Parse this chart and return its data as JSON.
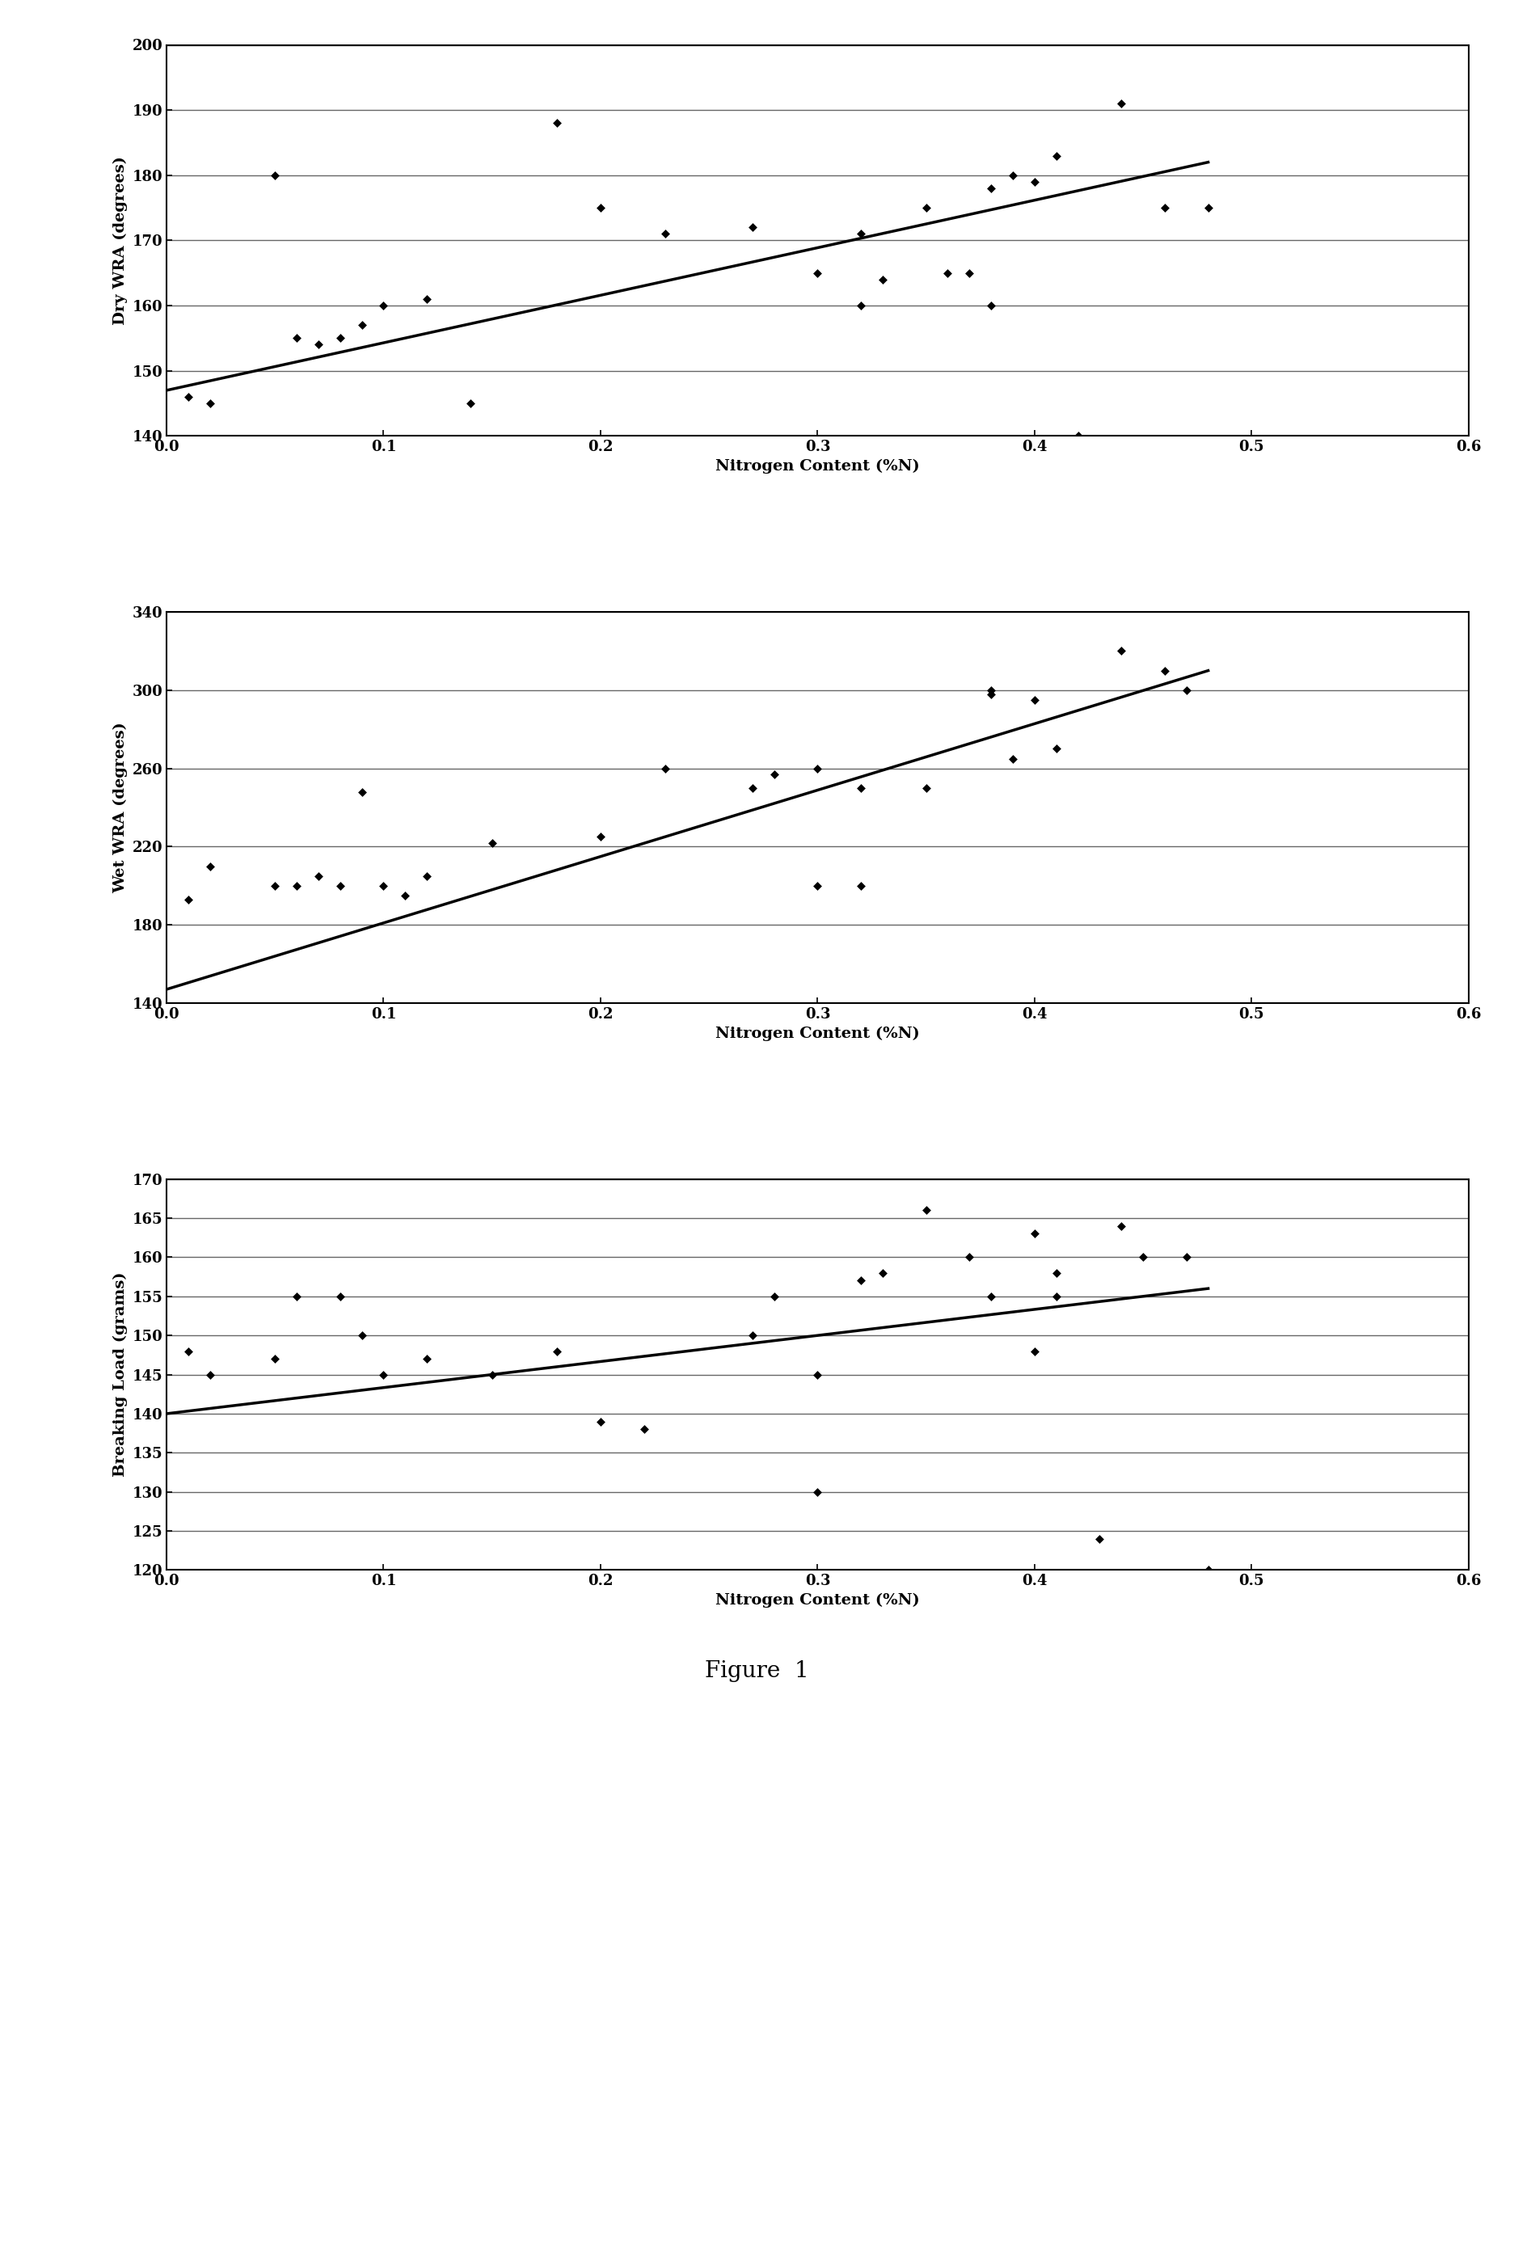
{
  "chart1": {
    "xlabel": "Nitrogen Content (%N)",
    "ylabel": "Dry WRA (degrees)",
    "xlim": [
      0,
      0.6
    ],
    "ylim": [
      140,
      200
    ],
    "yticks": [
      140,
      150,
      160,
      170,
      180,
      190,
      200
    ],
    "xticks": [
      0,
      0.1,
      0.2,
      0.3,
      0.4,
      0.5,
      0.6
    ],
    "scatter_x": [
      0.01,
      0.02,
      0.05,
      0.06,
      0.07,
      0.08,
      0.09,
      0.1,
      0.12,
      0.14,
      0.18,
      0.2,
      0.23,
      0.27,
      0.3,
      0.32,
      0.32,
      0.33,
      0.35,
      0.36,
      0.37,
      0.38,
      0.38,
      0.39,
      0.4,
      0.41,
      0.42,
      0.44,
      0.46,
      0.48
    ],
    "scatter_y": [
      146,
      145,
      180,
      155,
      154,
      155,
      157,
      160,
      161,
      145,
      188,
      175,
      171,
      172,
      165,
      160,
      171,
      164,
      175,
      165,
      165,
      178,
      160,
      180,
      179,
      183,
      140,
      191,
      175,
      175
    ],
    "trendline_x": [
      0,
      0.48
    ],
    "trendline_y": [
      147,
      182
    ]
  },
  "chart2": {
    "xlabel": "Nitrogen Content (%N)",
    "ylabel": "Wet WRA (degrees)",
    "xlim": [
      0,
      0.6
    ],
    "ylim": [
      140,
      340
    ],
    "yticks": [
      140,
      180,
      220,
      260,
      300,
      340
    ],
    "xticks": [
      0,
      0.1,
      0.2,
      0.3,
      0.4,
      0.5,
      0.6
    ],
    "scatter_x": [
      0.01,
      0.02,
      0.05,
      0.06,
      0.07,
      0.08,
      0.09,
      0.1,
      0.11,
      0.12,
      0.15,
      0.2,
      0.23,
      0.27,
      0.28,
      0.3,
      0.3,
      0.32,
      0.32,
      0.35,
      0.38,
      0.38,
      0.39,
      0.4,
      0.41,
      0.44,
      0.46,
      0.47
    ],
    "scatter_y": [
      193,
      210,
      200,
      200,
      205,
      200,
      248,
      200,
      195,
      205,
      222,
      225,
      260,
      250,
      257,
      260,
      200,
      200,
      250,
      250,
      298,
      300,
      265,
      295,
      270,
      320,
      310,
      300
    ],
    "trendline_x": [
      0,
      0.48
    ],
    "trendline_y": [
      147,
      310
    ]
  },
  "chart3": {
    "xlabel": "Nitrogen Content (%N)",
    "ylabel": "Breaking Load (grams)",
    "xlim": [
      0,
      0.6
    ],
    "ylim": [
      120,
      170
    ],
    "yticks": [
      120,
      125,
      130,
      135,
      140,
      145,
      150,
      155,
      160,
      165,
      170
    ],
    "xticks": [
      0,
      0.1,
      0.2,
      0.3,
      0.4,
      0.5,
      0.6
    ],
    "scatter_x": [
      0.01,
      0.02,
      0.05,
      0.06,
      0.08,
      0.09,
      0.1,
      0.12,
      0.15,
      0.18,
      0.2,
      0.22,
      0.27,
      0.28,
      0.3,
      0.3,
      0.32,
      0.33,
      0.35,
      0.37,
      0.38,
      0.4,
      0.4,
      0.41,
      0.41,
      0.43,
      0.44,
      0.45,
      0.47,
      0.48
    ],
    "scatter_y": [
      148,
      145,
      147,
      155,
      155,
      150,
      145,
      147,
      145,
      148,
      139,
      138,
      150,
      155,
      130,
      145,
      157,
      158,
      166,
      160,
      155,
      163,
      148,
      155,
      158,
      124,
      164,
      160,
      160,
      120
    ],
    "trendline_x": [
      0,
      0.48
    ],
    "trendline_y": [
      140,
      156
    ]
  },
  "figure_label": "Figure  1",
  "marker": "D",
  "marker_size": 5,
  "marker_color": "black",
  "line_color": "black",
  "line_width": 2.5,
  "background_color": "white",
  "grid_color": "#666666",
  "font_family": "serif",
  "label_fontsize": 14,
  "tick_fontsize": 13,
  "fig_label_fontsize": 20
}
